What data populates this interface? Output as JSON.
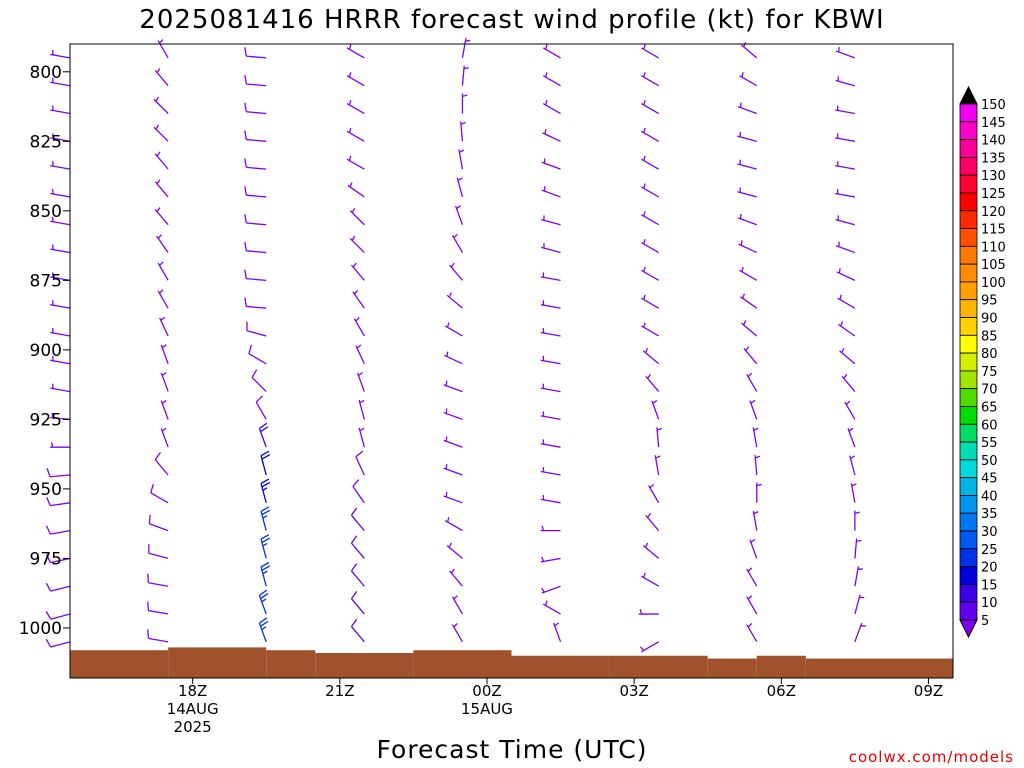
{
  "chart_data": {
    "type": "wind-profile",
    "title": "2025081416 HRRR forecast wind profile (kt) for KBWI",
    "xlabel": "Forecast Time (UTC)",
    "credit": "coolwx.com/models",
    "y_axis": {
      "range": [
        790,
        1018
      ],
      "inverted": true,
      "ticks": [
        800,
        825,
        850,
        875,
        900,
        925,
        950,
        975,
        1000
      ]
    },
    "x_axis": {
      "range_hours": [
        15.5,
        33.5
      ],
      "ticks": [
        {
          "hour": 18,
          "lines": [
            "18Z",
            "14AUG",
            "2025"
          ]
        },
        {
          "hour": 21,
          "lines": [
            "21Z"
          ]
        },
        {
          "hour": 24,
          "lines": [
            "00Z",
            "15AUG"
          ]
        },
        {
          "hour": 27,
          "lines": [
            "03Z"
          ]
        },
        {
          "hour": 30,
          "lines": [
            "06Z"
          ]
        },
        {
          "hour": 33,
          "lines": [
            "09Z"
          ]
        }
      ]
    },
    "colorbar": {
      "labels": [
        "150",
        "145",
        "140",
        "135",
        "130",
        "125",
        "120",
        "115",
        "110",
        "105",
        "100",
        "95",
        "90",
        "85",
        "80",
        "75",
        "70",
        "65",
        "60",
        "55",
        "50",
        "45",
        "40",
        "35",
        "30",
        "25",
        "20",
        "15",
        "10",
        "5"
      ],
      "colors": [
        "#f000f0",
        "#ff00c8",
        "#ff0096",
        "#ff0064",
        "#ff0032",
        "#ff0000",
        "#ff2800",
        "#ff5000",
        "#ff7800",
        "#ff8c00",
        "#ffa000",
        "#ffb400",
        "#ffd200",
        "#ffff00",
        "#d2f000",
        "#a0e600",
        "#50dc00",
        "#00dc00",
        "#00dc64",
        "#00dcb4",
        "#00dcdc",
        "#00b4e6",
        "#0096f0",
        "#0078f0",
        "#005af0",
        "#0032e6",
        "#0000dc",
        "#3c00e6",
        "#6400f0",
        "#8200f0"
      ]
    },
    "surface_pressure": [
      {
        "h": [
          15.5,
          17.5
        ],
        "p": 1008
      },
      {
        "h": [
          17.5,
          19.5
        ],
        "p": 1007
      },
      {
        "h": [
          19.5,
          20.5
        ],
        "p": 1008
      },
      {
        "h": [
          20.5,
          22.5
        ],
        "p": 1009
      },
      {
        "h": [
          22.5,
          24.5
        ],
        "p": 1008
      },
      {
        "h": [
          24.5,
          26.5
        ],
        "p": 1010
      },
      {
        "h": [
          26.5,
          28.5
        ],
        "p": 1010
      },
      {
        "h": [
          28.5,
          29.5
        ],
        "p": 1011
      },
      {
        "h": [
          29.5,
          30.5
        ],
        "p": 1010
      },
      {
        "h": [
          30.5,
          33.5
        ],
        "p": 1011
      }
    ],
    "profile_levels": [
      795,
      805,
      815,
      825,
      835,
      845,
      855,
      865,
      875,
      885,
      895,
      905,
      915,
      925,
      935,
      945,
      955,
      965,
      975,
      985,
      995,
      1005
    ],
    "profiles": [
      {
        "hour": 15.5,
        "speeds": [
          5,
          5,
          5,
          5,
          5,
          5,
          5,
          5,
          5,
          5,
          5,
          5,
          5,
          6,
          7,
          8,
          8,
          8,
          8,
          8,
          8,
          8
        ],
        "dirs": [
          280,
          280,
          280,
          280,
          280,
          280,
          280,
          280,
          280,
          280,
          280,
          280,
          280,
          275,
          270,
          265,
          262,
          260,
          258,
          256,
          255,
          255
        ]
      },
      {
        "hour": 17.5,
        "speeds": [
          6,
          6,
          6,
          6,
          6,
          6,
          6,
          6,
          6,
          6,
          6,
          6,
          6,
          6,
          7,
          8,
          8,
          8,
          9,
          9,
          9,
          9
        ],
        "dirs": [
          330,
          320,
          315,
          315,
          320,
          320,
          320,
          325,
          330,
          330,
          335,
          340,
          340,
          340,
          340,
          320,
          300,
          290,
          285,
          280,
          280,
          280
        ]
      },
      {
        "hour": 19.5,
        "speeds": [
          8,
          8,
          8,
          8,
          8,
          8,
          8,
          8,
          8,
          8,
          8,
          8,
          8,
          8,
          18,
          22,
          24,
          26,
          26,
          26,
          25,
          25
        ],
        "dirs": [
          275,
          275,
          275,
          275,
          275,
          275,
          275,
          275,
          275,
          275,
          285,
          300,
          315,
          330,
          340,
          345,
          345,
          345,
          345,
          345,
          340,
          340
        ]
      },
      {
        "hour": 21.5,
        "speeds": [
          6,
          6,
          6,
          6,
          6,
          6,
          6,
          6,
          6,
          6,
          6,
          6,
          6,
          6,
          7,
          8,
          9,
          10,
          11,
          12,
          12,
          12
        ],
        "dirs": [
          300,
          300,
          300,
          300,
          300,
          305,
          315,
          315,
          320,
          325,
          330,
          335,
          340,
          345,
          345,
          335,
          325,
          320,
          320,
          320,
          320,
          320
        ]
      },
      {
        "hour": 23.5,
        "speeds": [
          6,
          6,
          6,
          6,
          6,
          6,
          6,
          6,
          6,
          6,
          6,
          6,
          6,
          6,
          6,
          6,
          6,
          6,
          6,
          6,
          6,
          6
        ],
        "dirs": [
          10,
          5,
          360,
          355,
          350,
          345,
          340,
          330,
          320,
          310,
          300,
          295,
          290,
          290,
          290,
          290,
          290,
          300,
          310,
          320,
          330,
          330
        ]
      },
      {
        "hour": 25.5,
        "speeds": [
          6,
          6,
          6,
          6,
          6,
          6,
          6,
          6,
          6,
          6,
          6,
          6,
          6,
          6,
          6,
          6,
          6,
          6,
          6,
          6,
          6,
          6
        ],
        "dirs": [
          300,
          300,
          300,
          295,
          290,
          290,
          285,
          285,
          280,
          280,
          280,
          280,
          280,
          280,
          280,
          280,
          280,
          270,
          260,
          250,
          300,
          340
        ]
      },
      {
        "hour": 27.5,
        "speeds": [
          6,
          6,
          6,
          6,
          6,
          6,
          6,
          6,
          6,
          6,
          6,
          6,
          6,
          6,
          6,
          6,
          6,
          6,
          6,
          6,
          6,
          6
        ],
        "dirs": [
          300,
          300,
          300,
          300,
          300,
          300,
          300,
          300,
          300,
          300,
          300,
          310,
          320,
          340,
          355,
          350,
          330,
          320,
          310,
          300,
          270,
          240
        ]
      },
      {
        "hour": 29.5,
        "speeds": [
          6,
          6,
          6,
          6,
          6,
          6,
          6,
          6,
          6,
          6,
          6,
          6,
          6,
          6,
          6,
          6,
          6,
          6,
          6,
          6,
          6,
          6
        ],
        "dirs": [
          310,
          300,
          290,
          285,
          285,
          285,
          290,
          295,
          300,
          305,
          310,
          320,
          330,
          340,
          350,
          355,
          360,
          350,
          340,
          330,
          330,
          330
        ]
      },
      {
        "hour": 31.5,
        "speeds": [
          6,
          6,
          6,
          6,
          6,
          6,
          6,
          6,
          6,
          6,
          6,
          6,
          6,
          6,
          6,
          6,
          6,
          6,
          6,
          6,
          6,
          6
        ],
        "dirs": [
          290,
          285,
          280,
          280,
          280,
          280,
          285,
          290,
          295,
          300,
          305,
          310,
          320,
          330,
          340,
          345,
          350,
          360,
          5,
          10,
          15,
          20
        ]
      }
    ]
  }
}
